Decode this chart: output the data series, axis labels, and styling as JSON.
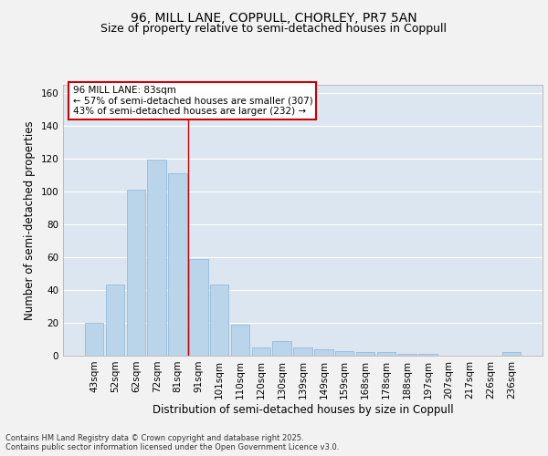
{
  "title_line1": "96, MILL LANE, COPPULL, CHORLEY, PR7 5AN",
  "title_line2": "Size of property relative to semi-detached houses in Coppull",
  "xlabel": "Distribution of semi-detached houses by size in Coppull",
  "ylabel": "Number of semi-detached properties",
  "categories": [
    "43sqm",
    "52sqm",
    "62sqm",
    "72sqm",
    "81sqm",
    "91sqm",
    "101sqm",
    "110sqm",
    "120sqm",
    "130sqm",
    "139sqm",
    "149sqm",
    "159sqm",
    "168sqm",
    "178sqm",
    "188sqm",
    "197sqm",
    "207sqm",
    "217sqm",
    "226sqm",
    "236sqm"
  ],
  "values": [
    20,
    43,
    101,
    119,
    111,
    59,
    43,
    19,
    5,
    9,
    5,
    4,
    3,
    2,
    2,
    1,
    1,
    0,
    0,
    0,
    2
  ],
  "bar_color": "#bad4ea",
  "bar_edge_color": "#8ab4d8",
  "background_color": "#dce6f0",
  "grid_color": "#ffffff",
  "annotation_box_text": "96 MILL LANE: 83sqm\n← 57% of semi-detached houses are smaller (307)\n43% of semi-detached houses are larger (232) →",
  "annotation_box_color": "#ffffff",
  "annotation_box_edge_color": "#cc0000",
  "vline_x": 4.5,
  "vline_color": "#cc0000",
  "ylim": [
    0,
    165
  ],
  "yticks": [
    0,
    20,
    40,
    60,
    80,
    100,
    120,
    140,
    160
  ],
  "fig_bg_color": "#f2f2f2",
  "footnote": "Contains HM Land Registry data © Crown copyright and database right 2025.\nContains public sector information licensed under the Open Government Licence v3.0.",
  "title_fontsize": 10,
  "subtitle_fontsize": 9,
  "axis_label_fontsize": 8.5,
  "tick_fontsize": 7.5,
  "annotation_fontsize": 7.5,
  "footnote_fontsize": 6
}
